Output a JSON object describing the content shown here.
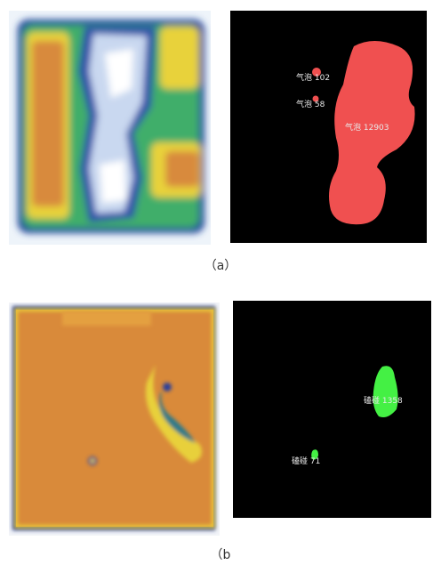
{
  "panels": [
    {
      "caption": "（a）",
      "labels": [
        "气泡 102",
        "气泡 58",
        "气泡 12903"
      ]
    },
    {
      "caption": "（b",
      "labels": [
        "磕碰 1358",
        "磕碰 71"
      ]
    }
  ]
}
